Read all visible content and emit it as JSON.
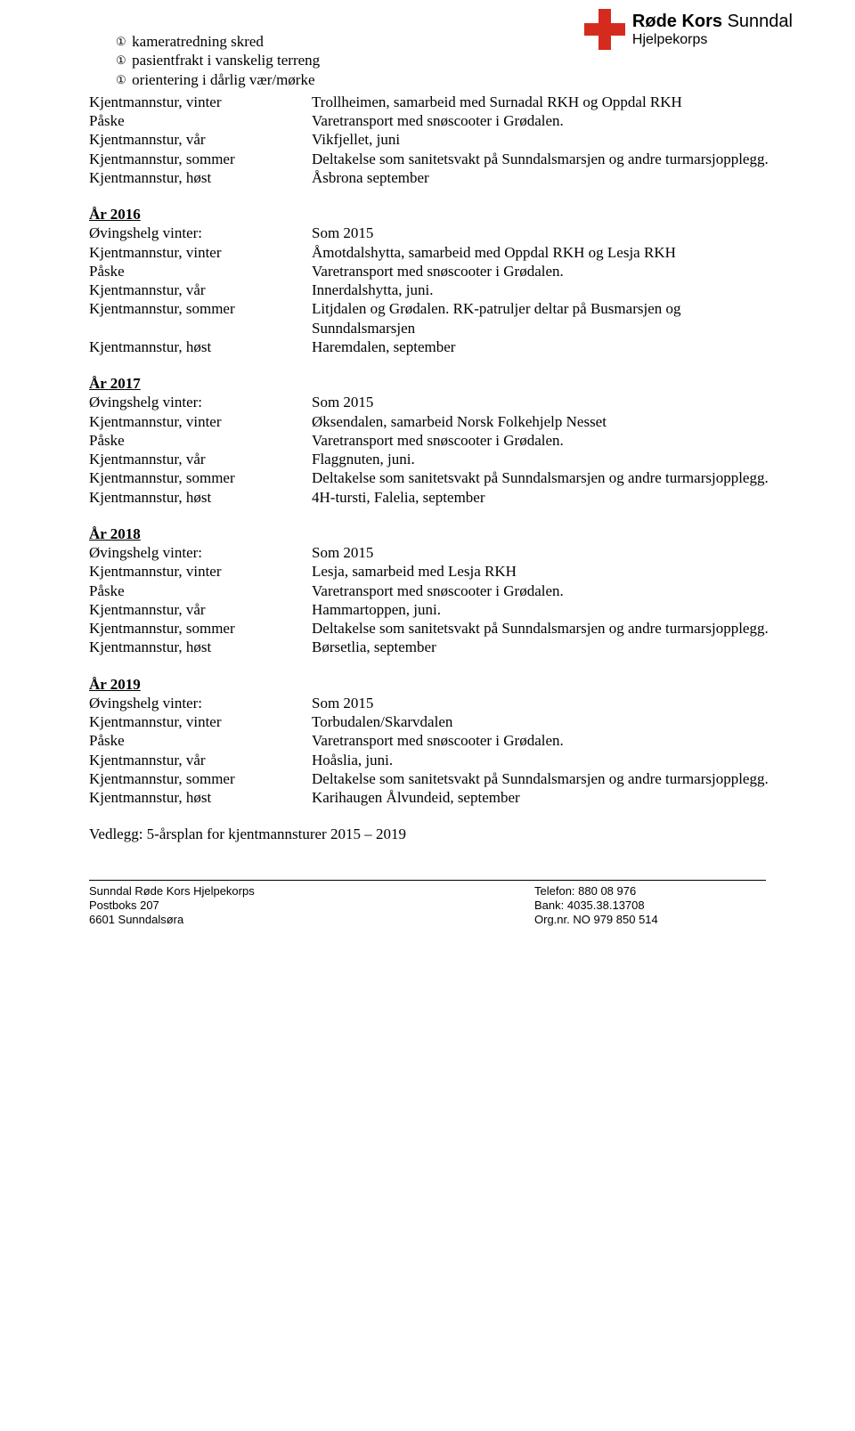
{
  "logo": {
    "title_bold": "Røde Kors",
    "title_light": "Sunndal",
    "subtitle": "Hjelpekorps",
    "cross_color": "#d52b1e"
  },
  "bullets": [
    "kameratredning skred",
    "pasientfrakt i vanskelig terreng",
    "orientering i dårlig vær/mørke"
  ],
  "intro_rows": [
    {
      "label": "Kjentmannstur, vinter",
      "value": "Trollheimen, samarbeid med Surnadal RKH og Oppdal RKH"
    },
    {
      "label": "Påske",
      "value": "Varetransport med snøscooter i Grødalen."
    },
    {
      "label": "Kjentmannstur, vår",
      "value": "Vikfjellet, juni"
    },
    {
      "label": "Kjentmannstur, sommer",
      "value": "Deltakelse som sanitetsvakt på Sunndalsmarsjen og andre turmarsjopplegg."
    },
    {
      "label": "Kjentmannstur, høst",
      "value": "Åsbrona september"
    }
  ],
  "years": [
    {
      "heading": "År 2016",
      "rows": [
        {
          "label": "Øvingshelg vinter:",
          "value": "Som 2015"
        },
        {
          "label": "Kjentmannstur, vinter",
          "value": "Åmotdalshytta, samarbeid med Oppdal RKH og Lesja RKH"
        },
        {
          "label": "Påske",
          "value": "Varetransport med snøscooter i Grødalen."
        },
        {
          "label": "Kjentmannstur, vår",
          "value": "Innerdalshytta, juni."
        },
        {
          "label": "Kjentmannstur, sommer",
          "value": "Litjdalen og Grødalen. RK-patruljer deltar på Busmarsjen og Sunndalsmarsjen"
        },
        {
          "label": "Kjentmannstur, høst",
          "value": "Haremdalen, september"
        }
      ]
    },
    {
      "heading": "År 2017",
      "rows": [
        {
          "label": "Øvingshelg vinter:",
          "value": "Som 2015"
        },
        {
          "label": "Kjentmannstur, vinter",
          "value": "Øksendalen, samarbeid Norsk Folkehjelp Nesset"
        },
        {
          "label": "Påske",
          "value": "Varetransport med snøscooter i Grødalen."
        },
        {
          "label": "Kjentmannstur, vår",
          "value": "Flaggnuten, juni."
        },
        {
          "label": "Kjentmannstur, sommer",
          "value": "Deltakelse som sanitetsvakt på Sunndalsmarsjen og andre turmarsjopplegg."
        },
        {
          "label": "Kjentmannstur, høst",
          "value": "4H-tursti, Falelia, september"
        }
      ]
    },
    {
      "heading": "År 2018",
      "rows": [
        {
          "label": "Øvingshelg vinter:",
          "value": "Som 2015"
        },
        {
          "label": "Kjentmannstur, vinter",
          "value": "Lesja, samarbeid med Lesja RKH"
        },
        {
          "label": "Påske",
          "value": "Varetransport med snøscooter i Grødalen."
        },
        {
          "label": "Kjentmannstur, vår",
          "value": "Hammartoppen, juni."
        },
        {
          "label": "Kjentmannstur, sommer",
          "value": "Deltakelse som sanitetsvakt på Sunndalsmarsjen og andre turmarsjopplegg."
        },
        {
          "label": "Kjentmannstur, høst",
          "value": "Børsetlia, september"
        }
      ]
    },
    {
      "heading": "År 2019",
      "rows": [
        {
          "label": "Øvingshelg vinter:",
          "value": "Som 2015"
        },
        {
          "label": "Kjentmannstur, vinter",
          "value": "Torbudalen/Skarvdalen"
        },
        {
          "label": "Påske",
          "value": "Varetransport med snøscooter i Grødalen."
        },
        {
          "label": "Kjentmannstur, vår",
          "value": "Hoåslia, juni."
        },
        {
          "label": "Kjentmannstur, sommer",
          "value": "Deltakelse som sanitetsvakt på Sunndalsmarsjen og andre turmarsjopplegg."
        },
        {
          "label": "Kjentmannstur, høst",
          "value": "Karihaugen Ålvundeid, september"
        }
      ]
    }
  ],
  "attachment": "Vedlegg: 5-årsplan for kjentmannsturer 2015 – 2019",
  "footer": {
    "left": [
      "Sunndal Røde Kors Hjelpekorps",
      "Postboks 207",
      "6601 Sunndalsøra"
    ],
    "right": [
      "Telefon: 880 08 976",
      "Bank: 4035.38.13708",
      "Org.nr. NO 979 850 514"
    ]
  }
}
